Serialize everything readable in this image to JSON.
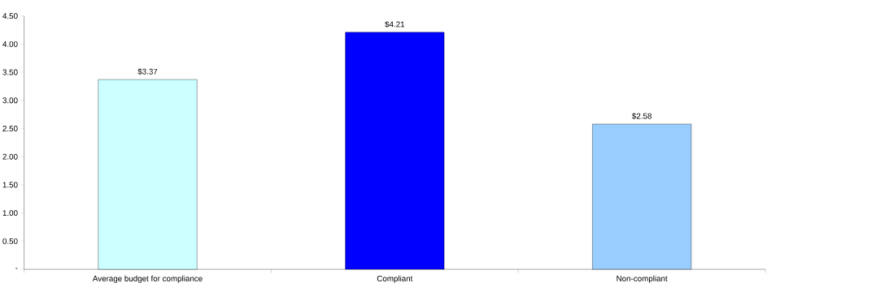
{
  "chart_data": {
    "type": "bar",
    "categories": [
      "Average budget for compliance",
      "Compliant",
      "Non-compliant"
    ],
    "values": [
      3.37,
      4.21,
      2.58
    ],
    "colors": [
      "#ccffff",
      "#0000ff",
      "#99ccff"
    ],
    "value_labels": [
      "$3.37",
      "$4.21",
      "$2.58"
    ],
    "ylim": [
      0,
      4.5
    ],
    "yticks": [
      {
        "value": 0,
        "label": "-"
      },
      {
        "value": 0.5,
        "label": "0.50"
      },
      {
        "value": 1,
        "label": "1.00"
      },
      {
        "value": 1.5,
        "label": "1.50"
      },
      {
        "value": 2,
        "label": "2.00"
      },
      {
        "value": 2.5,
        "label": "2.50"
      },
      {
        "value": 3,
        "label": "3.00"
      },
      {
        "value": 3.5,
        "label": "3.50"
      },
      {
        "value": 4,
        "label": "4.00"
      },
      {
        "value": 4.5,
        "label": "4.50"
      }
    ],
    "grid": false,
    "legend": false
  }
}
